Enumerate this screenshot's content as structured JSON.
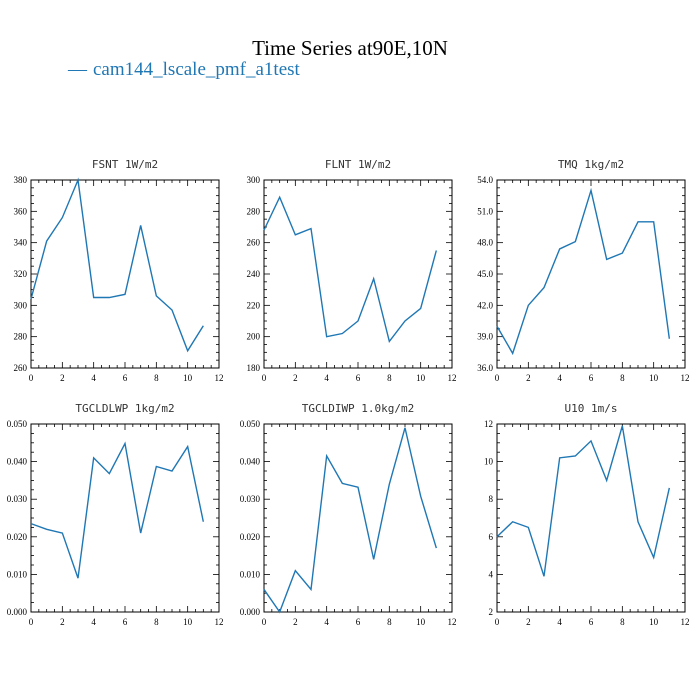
{
  "title": "Time Series at90E,10N",
  "legend": {
    "label": "cam144_lscale_pmf_a1test",
    "color": "#1f77b4"
  },
  "chart_data": [
    {
      "type": "line",
      "title": "FSNT   1W/m2",
      "xlim": [
        0,
        12
      ],
      "xticks": [
        0,
        2,
        4,
        6,
        8,
        10,
        12
      ],
      "ylim": [
        260,
        380
      ],
      "yticks": [
        260,
        280,
        300,
        320,
        340,
        360,
        380
      ],
      "ytick_labels": [
        "260",
        "280",
        "300",
        "320",
        "340",
        "360",
        "380"
      ],
      "x": [
        0,
        1,
        2,
        3,
        4,
        5,
        6,
        7,
        8,
        9,
        10,
        11
      ],
      "series": [
        {
          "values": [
            304,
            341,
            356,
            380,
            305,
            305,
            307,
            351,
            306,
            297,
            271,
            287
          ]
        }
      ]
    },
    {
      "type": "line",
      "title": "FLNT   1W/m2",
      "xlim": [
        0,
        12
      ],
      "xticks": [
        0,
        2,
        4,
        6,
        8,
        10,
        12
      ],
      "ylim": [
        180,
        300
      ],
      "yticks": [
        180,
        200,
        220,
        240,
        260,
        280,
        300
      ],
      "ytick_labels": [
        "180",
        "200",
        "220",
        "240",
        "260",
        "280",
        "300"
      ],
      "x": [
        0,
        1,
        2,
        3,
        4,
        5,
        6,
        7,
        8,
        9,
        10,
        11
      ],
      "series": [
        {
          "values": [
            268,
            289,
            265,
            269,
            200,
            202,
            210,
            237,
            197,
            210,
            218,
            255
          ]
        }
      ]
    },
    {
      "type": "line",
      "title": "TMQ   1kg/m2",
      "xlim": [
        0,
        12
      ],
      "xticks": [
        0,
        2,
        4,
        6,
        8,
        10,
        12
      ],
      "ylim": [
        36,
        54
      ],
      "yticks": [
        36,
        39,
        42,
        45,
        48,
        51,
        54
      ],
      "ytick_labels": [
        "36.0",
        "39.0",
        "42.0",
        "45.0",
        "48.0",
        "51.0",
        "54.0"
      ],
      "x": [
        0,
        1,
        2,
        3,
        4,
        5,
        6,
        7,
        8,
        9,
        10,
        11
      ],
      "series": [
        {
          "values": [
            40.0,
            37.4,
            42.0,
            43.7,
            47.4,
            48.1,
            53.0,
            46.4,
            47.0,
            50.0,
            50.0,
            38.8
          ]
        }
      ]
    },
    {
      "type": "line",
      "title": "TGCLDLWP   1kg/m2",
      "xlim": [
        0,
        12
      ],
      "xticks": [
        0,
        2,
        4,
        6,
        8,
        10,
        12
      ],
      "ylim": [
        0,
        0.05
      ],
      "yticks": [
        0,
        0.01,
        0.02,
        0.03,
        0.04,
        0.05
      ],
      "ytick_labels": [
        "0.000",
        "0.010",
        "0.020",
        "0.030",
        "0.040",
        "0.050"
      ],
      "x": [
        0,
        1,
        2,
        3,
        4,
        5,
        6,
        7,
        8,
        9,
        10,
        11
      ],
      "series": [
        {
          "values": [
            0.0235,
            0.022,
            0.021,
            0.009,
            0.041,
            0.0368,
            0.0448,
            0.021,
            0.0387,
            0.0375,
            0.044,
            0.024
          ]
        }
      ]
    },
    {
      "type": "line",
      "title": "TGCLDIWP   1.0kg/m2",
      "xlim": [
        0,
        12
      ],
      "xticks": [
        0,
        2,
        4,
        6,
        8,
        10,
        12
      ],
      "ylim": [
        0,
        0.05
      ],
      "yticks": [
        0,
        0.01,
        0.02,
        0.03,
        0.04,
        0.05
      ],
      "ytick_labels": [
        "0.000",
        "0.010",
        "0.020",
        "0.030",
        "0.040",
        "0.050"
      ],
      "x": [
        0,
        1,
        2,
        3,
        4,
        5,
        6,
        7,
        8,
        9,
        10,
        11
      ],
      "series": [
        {
          "values": [
            0.006,
            0.0,
            0.011,
            0.006,
            0.0415,
            0.0342,
            0.0332,
            0.014,
            0.034,
            0.049,
            0.0308,
            0.017
          ]
        }
      ]
    },
    {
      "type": "line",
      "title": "U10   1m/s",
      "xlim": [
        0,
        12
      ],
      "xticks": [
        0,
        2,
        4,
        6,
        8,
        10,
        12
      ],
      "ylim": [
        2,
        12
      ],
      "yticks": [
        2,
        4,
        6,
        8,
        10,
        12
      ],
      "ytick_labels": [
        "2",
        "4",
        "6",
        "8",
        "10",
        "12"
      ],
      "x": [
        0,
        1,
        2,
        3,
        4,
        5,
        6,
        7,
        8,
        9,
        10,
        11
      ],
      "series": [
        {
          "values": [
            6.0,
            6.8,
            6.5,
            3.9,
            10.2,
            10.3,
            11.1,
            9.0,
            11.9,
            6.8,
            4.9,
            8.6
          ]
        }
      ]
    }
  ]
}
